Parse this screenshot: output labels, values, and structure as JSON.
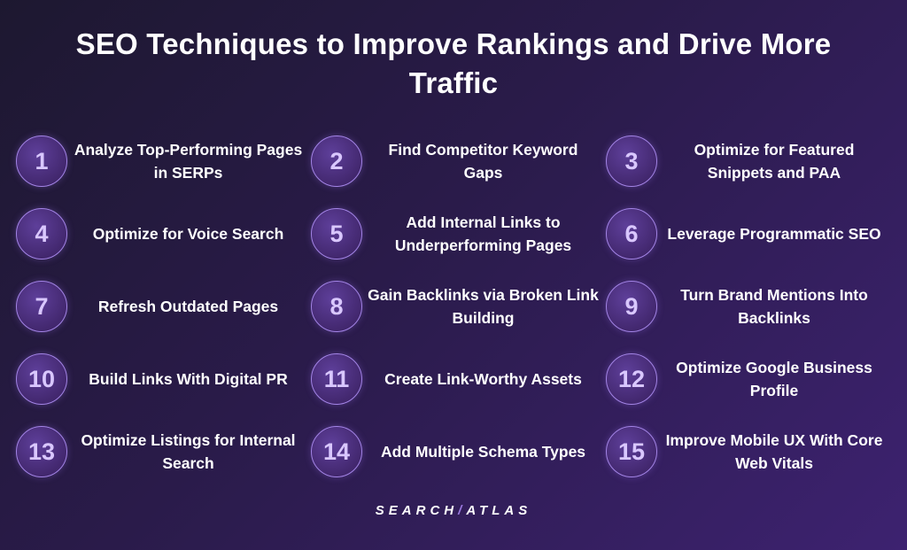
{
  "title": "SEO Techniques to Improve Rankings and Drive More Traffic",
  "items": [
    {
      "number": "1",
      "label": "Analyze Top-Performing Pages in SERPs"
    },
    {
      "number": "2",
      "label": "Find Competitor Keyword Gaps"
    },
    {
      "number": "3",
      "label": "Optimize for Featured Snippets and PAA"
    },
    {
      "number": "4",
      "label": "Optimize for Voice Search"
    },
    {
      "number": "5",
      "label": "Add Internal Links to Underperforming Pages"
    },
    {
      "number": "6",
      "label": "Leverage Programmatic SEO"
    },
    {
      "number": "7",
      "label": "Refresh Outdated Pages"
    },
    {
      "number": "8",
      "label": "Gain Backlinks via Broken Link Building"
    },
    {
      "number": "9",
      "label": "Turn Brand Mentions Into Backlinks"
    },
    {
      "number": "10",
      "label": "Build Links With Digital PR"
    },
    {
      "number": "11",
      "label": "Create Link-Worthy Assets"
    },
    {
      "number": "12",
      "label": "Optimize Google Business Profile"
    },
    {
      "number": "13",
      "label": "Optimize Listings for Internal Search"
    },
    {
      "number": "14",
      "label": "Add Multiple Schema Types"
    },
    {
      "number": "15",
      "label": "Improve Mobile UX With Core Web Vitals"
    }
  ],
  "logo": {
    "left": "SEARCH",
    "slash": "/",
    "right": "ATLAS"
  },
  "colors": {
    "accent": "#a384e6",
    "number": "#d9c7ff",
    "background": "#2a1b4a"
  }
}
